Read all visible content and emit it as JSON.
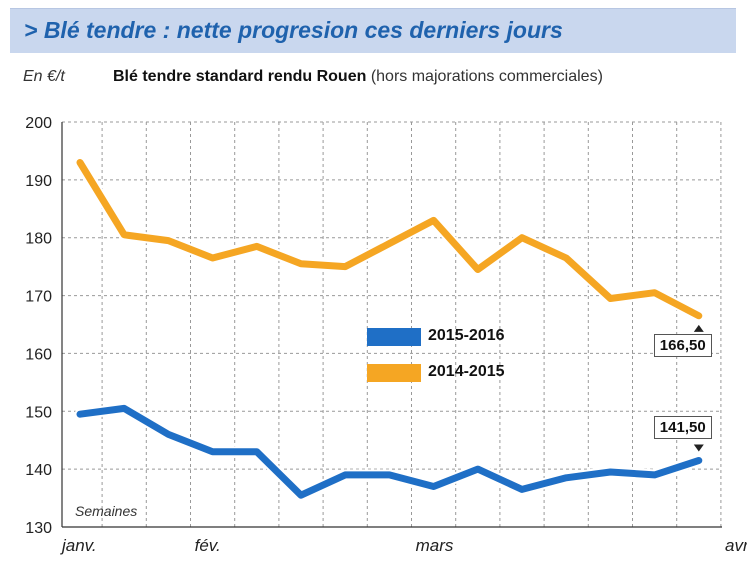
{
  "header": {
    "title": "> Blé tendre : nette progresion ces derniers jours",
    "unit_label": "En €/t",
    "subtitle_bold": "Blé tendre standard rendu Rouen",
    "subtitle_light": "(hors majorations commerciales)"
  },
  "chart_data": {
    "type": "line",
    "title": "Blé tendre standard rendu Rouen (hors majorations commerciales)",
    "ylabel": "En €/t",
    "xlabel": "Semaines",
    "ylim": [
      130,
      200
    ],
    "yticks": [
      130,
      140,
      150,
      160,
      170,
      180,
      190,
      200
    ],
    "x_tick_labels": [
      {
        "label": "janv.",
        "week": 0
      },
      {
        "label": "fév.",
        "week": 3
      },
      {
        "label": "mars",
        "week": 8
      },
      {
        "label": "avril",
        "week": 15
      }
    ],
    "grid": true,
    "legend_position": "center",
    "series": [
      {
        "name": "2015-2016",
        "color": "#1f6fc6",
        "values": [
          149.5,
          150.5,
          146,
          143,
          143,
          135.5,
          139,
          139,
          137,
          140,
          136.5,
          138.5,
          139.5,
          139,
          141.5
        ]
      },
      {
        "name": "2014-2015",
        "color": "#f5a623",
        "values": [
          193,
          180.5,
          179.5,
          176.5,
          178.5,
          175.5,
          175,
          179,
          183,
          174.5,
          180,
          176.5,
          169.5,
          170.5,
          166.5
        ]
      }
    ],
    "annotations": [
      {
        "text": "166,50",
        "series": "2014-2015"
      },
      {
        "text": "141,50",
        "series": "2015-2016"
      }
    ]
  }
}
